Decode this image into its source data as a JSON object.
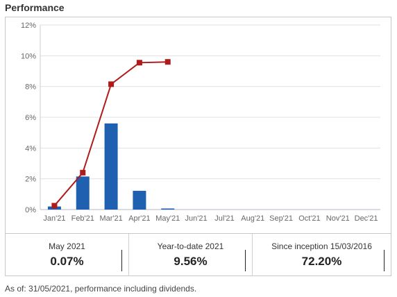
{
  "title": "Performance",
  "chart_data": {
    "type": "bar",
    "categories": [
      "Jan'21",
      "Feb'21",
      "Mar'21",
      "Apr'21",
      "May'21",
      "Jun'21",
      "Jul'21",
      "Aug'21",
      "Sep'21",
      "Oct'21",
      "Nov'21",
      "Dec'21"
    ],
    "series": [
      {
        "type": "bar",
        "values": [
          0.2,
          2.15,
          5.6,
          1.22,
          0.07,
          null,
          null,
          null,
          null,
          null,
          null,
          null
        ],
        "color": "#2060b0"
      },
      {
        "type": "line",
        "values": [
          0.25,
          2.4,
          8.15,
          9.55,
          9.6,
          null,
          null,
          null,
          null,
          null,
          null,
          null
        ],
        "color": "#b01a1a"
      }
    ],
    "y_ticks": [
      "0%",
      "2%",
      "4%",
      "6%",
      "8%",
      "10%",
      "12%"
    ],
    "ylim": [
      0,
      12
    ],
    "grid": true
  },
  "stats": [
    {
      "label": "May 2021",
      "value": "0.07%"
    },
    {
      "label": "Year-to-date 2021",
      "value": "9.56%"
    },
    {
      "label": "Since inception 15/03/2016",
      "value": "72.20%"
    }
  ],
  "footnote": "As of: 31/05/2021, performance including dividends."
}
